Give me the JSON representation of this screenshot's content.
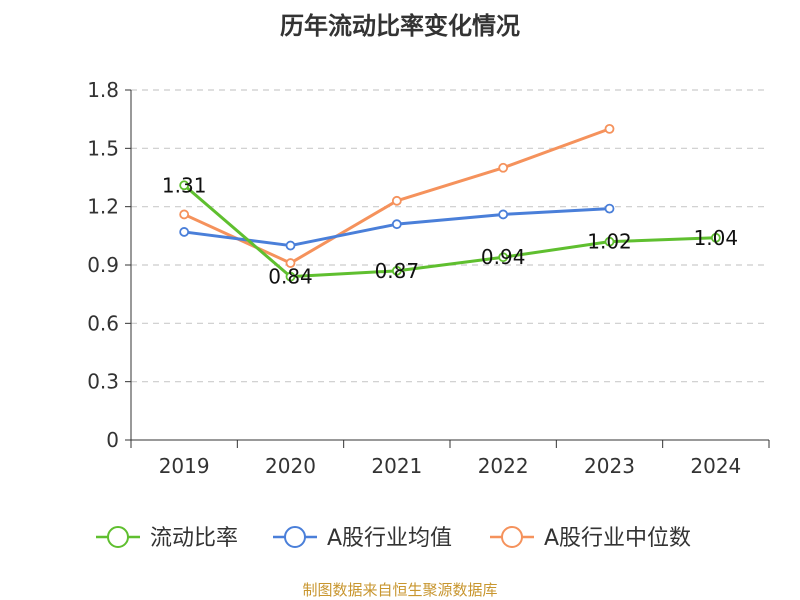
{
  "chart_data": {
    "type": "line",
    "title": "历年流动比率变化情况",
    "categories": [
      "2019",
      "2020",
      "2021",
      "2022",
      "2023",
      "2024"
    ],
    "y_ticks": [
      "0",
      "0.3",
      "0.6",
      "0.9",
      "1.2",
      "1.5",
      "1.8"
    ],
    "ylim": [
      0,
      1.8
    ],
    "grid": true,
    "legend_position": "bottom",
    "series": [
      {
        "name": "流动比率",
        "color": "#5fbf2f",
        "values": [
          1.31,
          0.84,
          0.87,
          0.94,
          1.02,
          1.04
        ],
        "labels": [
          "1.31",
          "0.84",
          "0.87",
          "0.94",
          "1.02",
          "1.04"
        ]
      },
      {
        "name": "A股行业均值",
        "color": "#4a7fd9",
        "values": [
          1.07,
          1.0,
          1.11,
          1.16,
          1.19,
          null
        ]
      },
      {
        "name": "A股行业中位数",
        "color": "#f5925c",
        "values": [
          1.16,
          0.91,
          1.23,
          1.4,
          1.6,
          null
        ]
      }
    ]
  },
  "source_note": "制图数据来自恒生聚源数据库"
}
